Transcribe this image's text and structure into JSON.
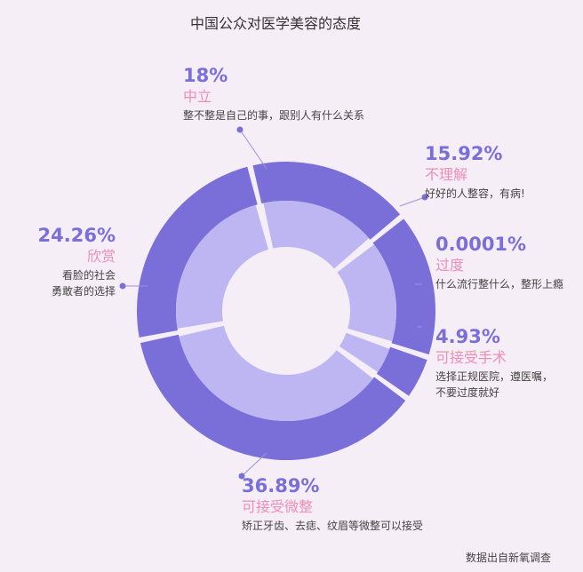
{
  "title": "中国公众对医学美容的态度",
  "source": "数据出自新氧调查",
  "colors": {
    "ring_outer": "#7a6fd9",
    "ring_inner": "#bdb6f2",
    "pct_text": "#7a6fd9",
    "label_text": "#ec8fb4",
    "guide_line": "#9a92de"
  },
  "chart_data": {
    "type": "pie",
    "style": "donut",
    "title": "中国公众对医学美容的态度",
    "series": [
      {
        "values": [
          18,
          15.92,
          0.0001,
          4.93,
          36.89,
          24.26
        ]
      }
    ],
    "categories": [
      "中立",
      "不理解",
      "过度",
      "可接受手术",
      "可接受微整",
      "欣赏"
    ],
    "slices": [
      {
        "percent_label": "18%",
        "category": "中立",
        "description": [
          "整不整是自己的事，跟别人有什么关系"
        ]
      },
      {
        "percent_label": "15.92%",
        "category": "不理解",
        "description": [
          "好好的人整容，有病!"
        ]
      },
      {
        "percent_label": "0.0001%",
        "category": "过度",
        "description": [
          "什么流行整什么，整形上瘾"
        ]
      },
      {
        "percent_label": "4.93%",
        "category": "可接受手术",
        "description": [
          "选择正规医院，遵医嘱，",
          "不要过度就好"
        ]
      },
      {
        "percent_label": "36.89%",
        "category": "可接受微整",
        "description": [
          "矫正牙齿、去痣、纹眉等微整可以接受"
        ]
      },
      {
        "percent_label": "24.26%",
        "category": "欣赏",
        "description": [
          "看脸的社会",
          "勇敢者的选择"
        ]
      }
    ]
  }
}
